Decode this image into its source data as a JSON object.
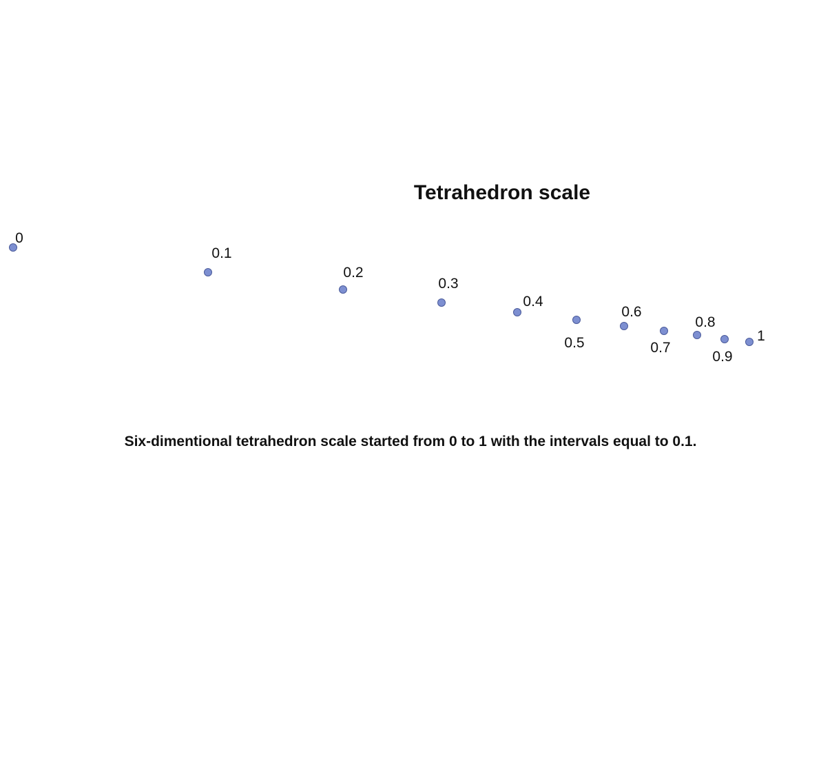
{
  "title": "Tetrahedron scale",
  "caption": "Six-dimentional tetrahedron scale started from 0 to 1 with the intervals equal to 0.1.",
  "colors": {
    "point_fill": "#7d8fd1",
    "point_stroke": "#4a5a9a",
    "text": "#111111"
  },
  "scale": {
    "points": [
      {
        "value": 0,
        "label": "0"
      },
      {
        "value": 0.1,
        "label": "0.1"
      },
      {
        "value": 0.2,
        "label": "0.2"
      },
      {
        "value": 0.3,
        "label": "0.3"
      },
      {
        "value": 0.4,
        "label": "0.4"
      },
      {
        "value": 0.5,
        "label": "0.5"
      },
      {
        "value": 0.6,
        "label": "0.6"
      },
      {
        "value": 0.7,
        "label": "0.7"
      },
      {
        "value": 0.8,
        "label": "0.8"
      },
      {
        "value": 0.9,
        "label": "0.9"
      },
      {
        "value": 1,
        "label": "1"
      }
    ]
  }
}
